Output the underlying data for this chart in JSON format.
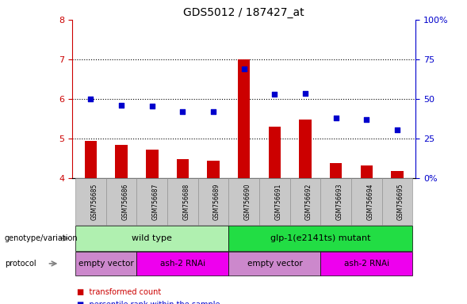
{
  "title": "GDS5012 / 187427_at",
  "samples": [
    "GSM756685",
    "GSM756686",
    "GSM756687",
    "GSM756688",
    "GSM756689",
    "GSM756690",
    "GSM756691",
    "GSM756692",
    "GSM756693",
    "GSM756694",
    "GSM756695"
  ],
  "bar_values": [
    4.93,
    4.84,
    4.71,
    4.48,
    4.44,
    7.0,
    5.29,
    5.48,
    4.38,
    4.32,
    4.18
  ],
  "dot_values": [
    6.0,
    5.84,
    5.82,
    5.68,
    5.68,
    6.75,
    6.12,
    6.14,
    5.52,
    5.48,
    5.22
  ],
  "ylim_left": [
    4,
    8
  ],
  "ylim_right": [
    0,
    100
  ],
  "bar_color": "#cc0000",
  "dot_color": "#0000cc",
  "genotype_groups": [
    {
      "label": "wild type",
      "start": 0,
      "end": 4,
      "color": "#b0f0b0"
    },
    {
      "label": "glp-1(e2141ts) mutant",
      "start": 5,
      "end": 10,
      "color": "#22dd44"
    }
  ],
  "protocol_groups": [
    {
      "label": "empty vector",
      "start": 0,
      "end": 1,
      "color": "#cc88cc"
    },
    {
      "label": "ash-2 RNAi",
      "start": 2,
      "end": 4,
      "color": "#ee00ee"
    },
    {
      "label": "empty vector",
      "start": 5,
      "end": 7,
      "color": "#cc88cc"
    },
    {
      "label": "ash-2 RNAi",
      "start": 8,
      "end": 10,
      "color": "#ee00ee"
    }
  ],
  "xtick_bg": "#c8c8c8",
  "plot_bg": "#ffffff"
}
